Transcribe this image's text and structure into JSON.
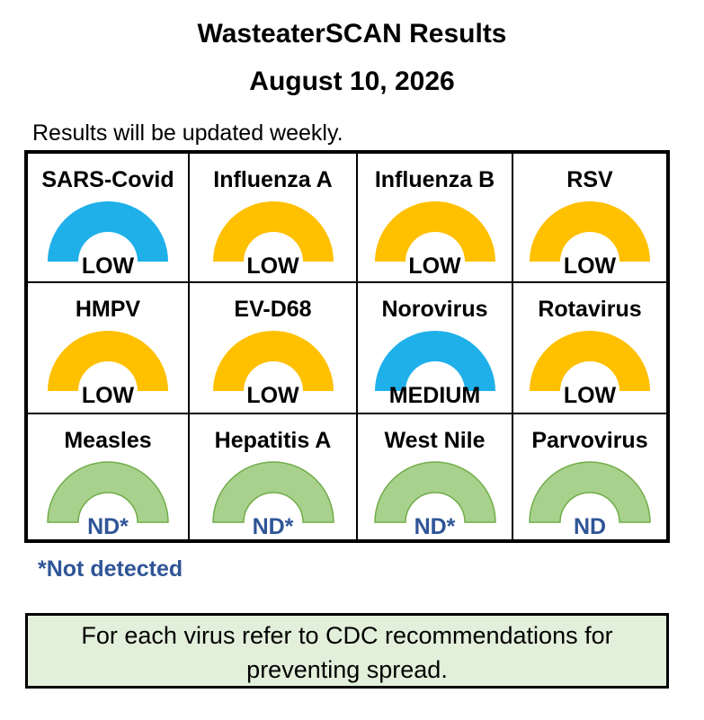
{
  "header": {
    "title": "WasteaterSCAN Results",
    "date": "August 10, 2026",
    "subtitle": "Results will be updated weekly."
  },
  "colors": {
    "blue": "#1fb0ea",
    "yellow": "#ffc000",
    "green": "#a9d18e",
    "green_stroke": "#70ad47",
    "nd_text": "#2f5597",
    "note_bg": "#e2efda"
  },
  "viruses": [
    {
      "name": "SARS-Covid",
      "level": "LOW",
      "gauge_color": "blue"
    },
    {
      "name": "Influenza A",
      "level": "LOW",
      "gauge_color": "yellow"
    },
    {
      "name": "Influenza B",
      "level": "LOW",
      "gauge_color": "yellow"
    },
    {
      "name": "RSV",
      "level": "LOW",
      "gauge_color": "yellow"
    },
    {
      "name": "HMPV",
      "level": "LOW",
      "gauge_color": "yellow"
    },
    {
      "name": "EV-D68",
      "level": "LOW",
      "gauge_color": "yellow"
    },
    {
      "name": "Norovirus",
      "level": "MEDIUM",
      "gauge_color": "blue"
    },
    {
      "name": "Rotavirus",
      "level": "LOW",
      "gauge_color": "yellow"
    },
    {
      "name": "Measles",
      "level": "ND*",
      "gauge_color": "green"
    },
    {
      "name": "Hepatitis A",
      "level": "ND*",
      "gauge_color": "green"
    },
    {
      "name": "West Nile",
      "level": "ND*",
      "gauge_color": "green"
    },
    {
      "name": "Parvovirus",
      "level": "ND",
      "gauge_color": "green"
    }
  ],
  "footnote": "*Not detected",
  "note": {
    "line1": "For each virus refer to CDC recommendations for",
    "line2": "preventing spread."
  }
}
